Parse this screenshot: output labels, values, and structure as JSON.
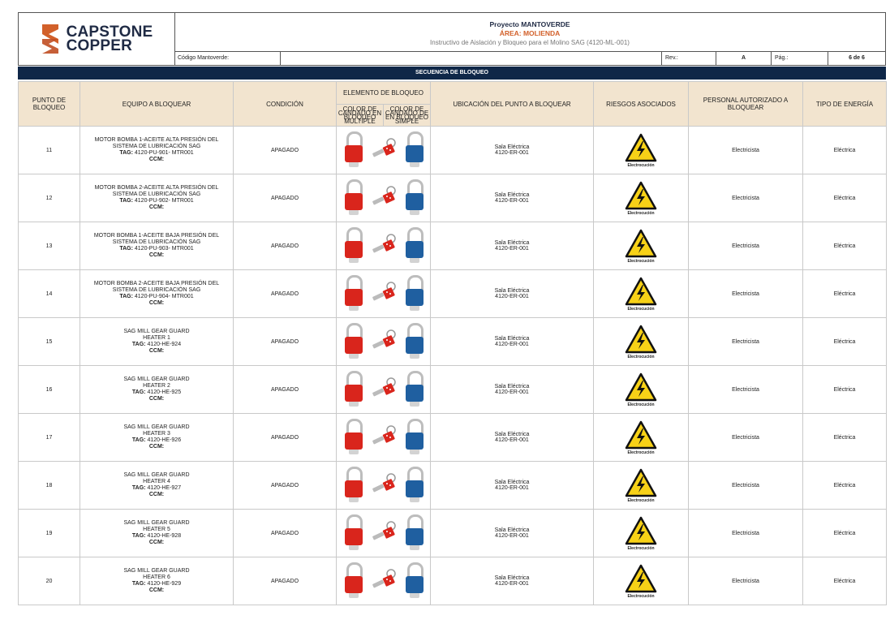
{
  "header": {
    "logo_text_1": "CAPSTONE",
    "logo_text_2": "COPPER",
    "project": "Proyecto MANTOVERDE",
    "area": "ÁREA: MOLIENDA",
    "subtitle": "Instructivo de Aislación y Bloqueo para el Molino SAG (4120-ML-001)",
    "code_label": "Código Mantoverde:",
    "code_value": "",
    "rev_label": "Rev.:",
    "rev_value": "A",
    "page_label": "Pág.:",
    "page_value": "6 de 6"
  },
  "section_title": "SECUENCIA DE BLOQUEO",
  "columns": {
    "point": "PUNTO DE BLOQUEO",
    "equipment": "EQUIPO A BLOQUEAR",
    "condition": "CONDICIÓN",
    "element": "ELEMENTO DE BLOQUEO",
    "element_sub_multi": "COLOR DE CANDADO EN BLOQUEO MÚLTIPLE",
    "element_sub_simple": "COLOR DE CANDADO DE EN BLOQUEO SIMPLE",
    "location": "UBICACIÓN DEL PUNTO A BLOQUEAR",
    "risks": "RIESGOS ASOCIADOS",
    "personnel": "PERSONAL AUTORIZADO A BLOQUEAR",
    "energy": "TIPO DE ENERGÍA"
  },
  "colors": {
    "red_lock": "#d9251c",
    "blue_lock": "#1f5fa0",
    "hazard_yellow": "#f7d117",
    "header_bg": "#f2e4cf",
    "section_bar": "#0f2748",
    "accent_orange": "#d2602a"
  },
  "icons": {
    "multi_lock": "red-padlock-icon",
    "hasp": "lockout-hasp-icon",
    "simple_lock": "blue-padlock-icon",
    "risk": "electric-hazard-icon"
  },
  "rows": [
    {
      "point": "11",
      "eq1": "MOTOR BOMBA 1-ACEITE ALTA PRESIÓN DEL",
      "eq2": "SISTEMA DE LUBRICACIÓN SAG",
      "tag_label": "TAG:",
      "tag": "4120-PU-901- MTR001",
      "ccm": "CCM:",
      "condition": "APAGADO",
      "loc1": "Sala Eléctrica",
      "loc2": "4120-ER-001",
      "risk": "Electrocución",
      "personnel": "Electricista",
      "energy": "Eléctrica"
    },
    {
      "point": "12",
      "eq1": "MOTOR BOMBA 2-ACEITE ALTA PRESIÓN DEL",
      "eq2": "SISTEMA DE LUBRICACIÓN SAG",
      "tag_label": "TAG:",
      "tag": "4120-PU-902- MTR001",
      "ccm": "CCM:",
      "condition": "APAGADO",
      "loc1": "Sala Eléctrica",
      "loc2": "4120-ER-001",
      "risk": "Electrocución",
      "personnel": "Electricista",
      "energy": "Eléctrica"
    },
    {
      "point": "13",
      "eq1": "MOTOR BOMBA 1-ACEITE BAJA PRESIÓN DEL",
      "eq2": "SISTEMA DE LUBRICACIÓN SAG",
      "tag_label": "TAG:",
      "tag": "4120-PU-903- MTR001",
      "ccm": "CCM:",
      "condition": "APAGADO",
      "loc1": "Sala Eléctrica",
      "loc2": "4120-ER-001",
      "risk": "Electrocución",
      "personnel": "Electricista",
      "energy": "Eléctrica"
    },
    {
      "point": "14",
      "eq1": "MOTOR BOMBA 2-ACEITE BAJA PRESIÓN DEL",
      "eq2": "SISTEMA DE LUBRICACIÓN SAG",
      "tag_label": "TAG:",
      "tag": "4120-PU-904- MTR001",
      "ccm": "CCM:",
      "condition": "APAGADO",
      "loc1": "Sala Eléctrica",
      "loc2": "4120-ER-001",
      "risk": "Electrocución",
      "personnel": "Electricista",
      "energy": "Eléctrica"
    },
    {
      "point": "15",
      "eq1": "SAG MILL GEAR GUARD",
      "eq2": "HEATER 1",
      "tag_label": "TAG:",
      "tag": "4120-HE-924",
      "ccm": "CCM:",
      "condition": "APAGADO",
      "loc1": "Sala Eléctrica",
      "loc2": "4120-ER-001",
      "risk": "Electrocución",
      "personnel": "Electricista",
      "energy": "Eléctrica"
    },
    {
      "point": "16",
      "eq1": "SAG MILL GEAR GUARD",
      "eq2": "HEATER 2",
      "tag_label": "TAG:",
      "tag": "4120-HE-925",
      "ccm": "CCM:",
      "condition": "APAGADO",
      "loc1": "Sala Eléctrica",
      "loc2": "4120-ER-001",
      "risk": "Electrocución",
      "personnel": "Electricista",
      "energy": "Eléctrica"
    },
    {
      "point": "17",
      "eq1": "SAG MILL GEAR GUARD",
      "eq2": "HEATER 3",
      "tag_label": "TAG:",
      "tag": "4120-HE-926",
      "ccm": "CCM:",
      "condition": "APAGADO",
      "loc1": "Sala Eléctrica",
      "loc2": "4120-ER-001",
      "risk": "Electrocución",
      "personnel": "Electricista",
      "energy": "Eléctrica"
    },
    {
      "point": "18",
      "eq1": "SAG MILL GEAR GUARD",
      "eq2": "HEATER 4",
      "tag_label": "TAG:",
      "tag": "4120-HE-927",
      "ccm": "CCM:",
      "condition": "APAGADO",
      "loc1": "Sala Eléctrica",
      "loc2": "4120-ER-001",
      "risk": "Electrocución",
      "personnel": "Electricista",
      "energy": "Eléctrica"
    },
    {
      "point": "19",
      "eq1": "SAG MILL GEAR GUARD",
      "eq2": "HEATER 5",
      "tag_label": "TAG:",
      "tag": "4120-HE-928",
      "ccm": "CCM:",
      "condition": "APAGADO",
      "loc1": "Sala Eléctrica",
      "loc2": "4120-ER-001",
      "risk": "Electrocución",
      "personnel": "Electricista",
      "energy": "Eléctrica"
    },
    {
      "point": "20",
      "eq1": "SAG MILL GEAR GUARD",
      "eq2": "HEATER 6",
      "tag_label": "TAG:",
      "tag": "4120-HE-929",
      "ccm": "CCM:",
      "condition": "APAGADO",
      "loc1": "Sala Eléctrica",
      "loc2": "4120-ER-001",
      "risk": "Electrocución",
      "personnel": "Electricista",
      "energy": "Eléctrica"
    }
  ]
}
